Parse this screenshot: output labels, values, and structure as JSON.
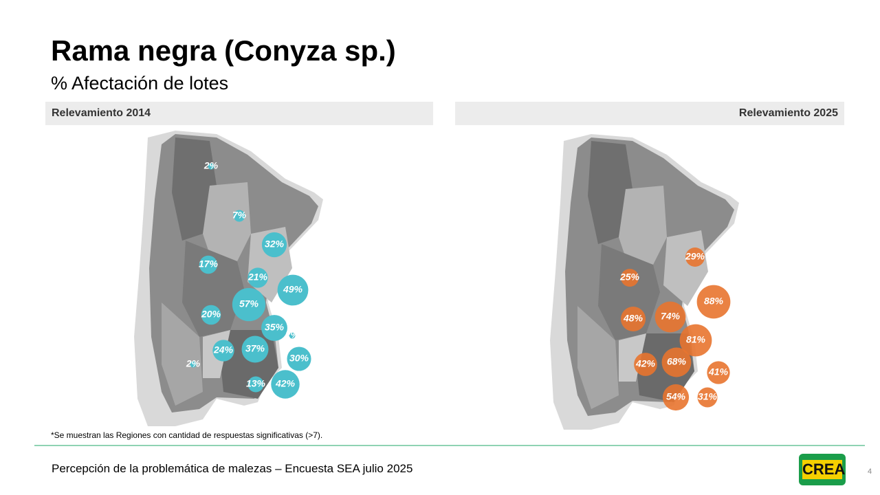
{
  "header": {
    "title": "Rama negra (Conyza sp.)",
    "subtitle": "% Afectación de lotes"
  },
  "maps": [
    {
      "heading": "Relevamiento 2014",
      "bubbles": [
        {
          "value": 2,
          "label": "2%"
        },
        {
          "value": 7,
          "label": "7%"
        },
        {
          "value": 32,
          "label": "32%"
        },
        {
          "value": 17,
          "label": "17%"
        },
        {
          "value": 21,
          "label": "21%"
        },
        {
          "value": 49,
          "label": "49%"
        },
        {
          "value": 57,
          "label": "57%"
        },
        {
          "value": 20,
          "label": "20%"
        },
        {
          "value": 35,
          "label": "35%"
        },
        {
          "value": 2,
          "label": "2%"
        },
        {
          "value": 24,
          "label": "24%"
        },
        {
          "value": 37,
          "label": "37%"
        },
        {
          "value": 30,
          "label": "30%"
        },
        {
          "value": 2,
          "label": "2%"
        },
        {
          "value": 13,
          "label": "13%"
        },
        {
          "value": 42,
          "label": "42%"
        }
      ]
    },
    {
      "heading": "Relevamiento 2025",
      "bubbles": [
        {
          "value": 29,
          "label": "29%"
        },
        {
          "value": 25,
          "label": "25%"
        },
        {
          "value": 88,
          "label": "88%"
        },
        {
          "value": 48,
          "label": "48%"
        },
        {
          "value": 74,
          "label": "74%"
        },
        {
          "value": 81,
          "label": "81%"
        },
        {
          "value": 42,
          "label": "42%"
        },
        {
          "value": 68,
          "label": "68%"
        },
        {
          "value": 41,
          "label": "41%"
        },
        {
          "value": 54,
          "label": "54%"
        },
        {
          "value": 31,
          "label": "31%"
        }
      ]
    }
  ],
  "footnote": "*Se muestran las Regiones con cantidad de respuestas significativas (>7).",
  "footer": {
    "text": "Percepción de la problemática de malezas – Encuesta SEA julio 2025",
    "logo": "CREA",
    "page": "4"
  }
}
